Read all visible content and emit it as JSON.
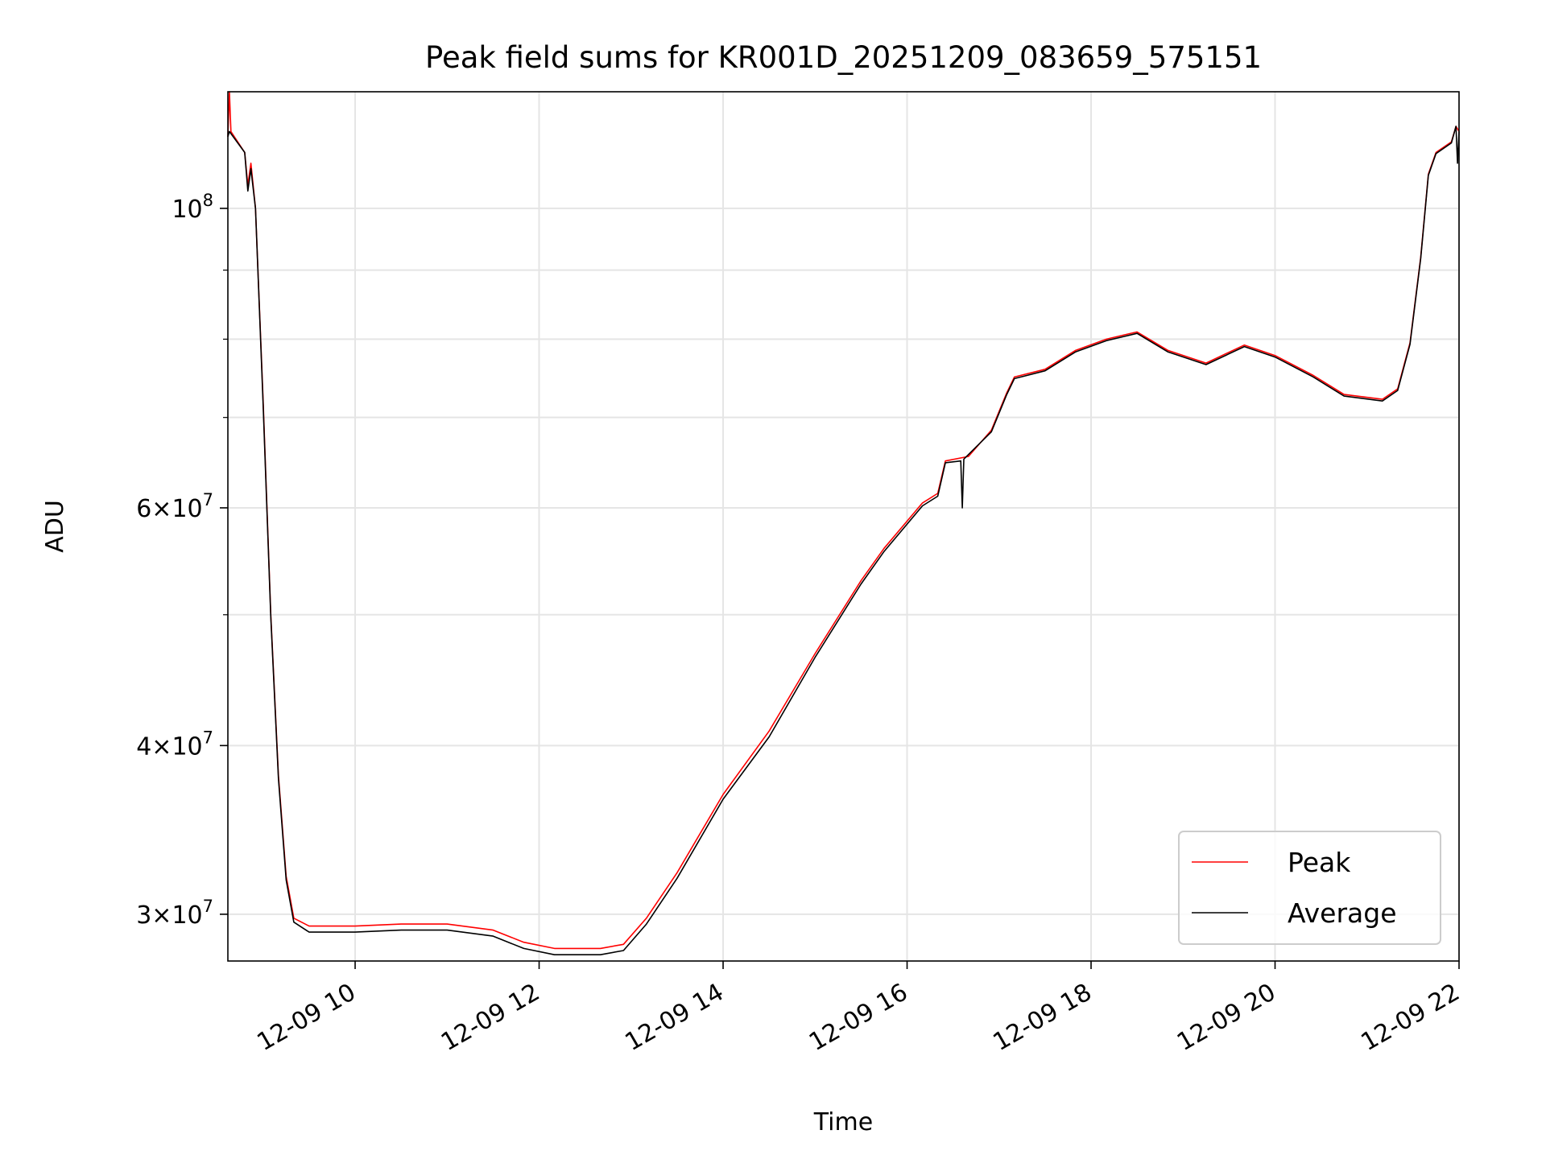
{
  "chart_data": {
    "type": "line",
    "title": "Peak field sums for KR001D_20251209_083659_575151",
    "xlabel": "Time",
    "ylabel": "ADU",
    "yscale": "log",
    "xlim": [
      "2025-12-09 08:37",
      "2025-12-09 22:00"
    ],
    "ylim": [
      27700000,
      122000000
    ],
    "grid": true,
    "legend": "lower right",
    "x_ticks": [
      {
        "value": "2025-12-09 10:00",
        "label": "12-09 10"
      },
      {
        "value": "2025-12-09 12:00",
        "label": "12-09 12"
      },
      {
        "value": "2025-12-09 14:00",
        "label": "12-09 14"
      },
      {
        "value": "2025-12-09 16:00",
        "label": "12-09 16"
      },
      {
        "value": "2025-12-09 18:00",
        "label": "12-09 18"
      },
      {
        "value": "2025-12-09 20:00",
        "label": "12-09 20"
      },
      {
        "value": "2025-12-09 22:00",
        "label": "12-09 22"
      }
    ],
    "y_ticks": [
      {
        "value": 30000000,
        "mantissa": "3",
        "exp": "7"
      },
      {
        "value": 40000000,
        "mantissa": "4",
        "exp": "7"
      },
      {
        "value": 60000000,
        "mantissa": "6",
        "exp": "7"
      },
      {
        "value": 100000000,
        "mantissa": "",
        "exp": "8"
      }
    ],
    "y_minor_ticks": [
      50000000,
      70000000,
      80000000,
      90000000
    ],
    "series": [
      {
        "name": "Peak",
        "color": "#ff0000",
        "points": [
          [
            "2025-12-09 08:37",
            113000000
          ],
          [
            "2025-12-09 08:38",
            122000000
          ],
          [
            "2025-12-09 08:39",
            114000000
          ],
          [
            "2025-12-09 08:48",
            110000000
          ],
          [
            "2025-12-09 08:50",
            104000000
          ],
          [
            "2025-12-09 08:52",
            108000000
          ],
          [
            "2025-12-09 08:55",
            100000000
          ],
          [
            "2025-12-09 09:00",
            72000000
          ],
          [
            "2025-12-09 09:05",
            50000000
          ],
          [
            "2025-12-09 09:10",
            38000000
          ],
          [
            "2025-12-09 09:15",
            32000000
          ],
          [
            "2025-12-09 09:20",
            29800000
          ],
          [
            "2025-12-09 09:30",
            29400000
          ],
          [
            "2025-12-09 10:00",
            29400000
          ],
          [
            "2025-12-09 10:30",
            29500000
          ],
          [
            "2025-12-09 11:00",
            29500000
          ],
          [
            "2025-12-09 11:30",
            29200000
          ],
          [
            "2025-12-09 11:50",
            28600000
          ],
          [
            "2025-12-09 12:10",
            28300000
          ],
          [
            "2025-12-09 12:40",
            28300000
          ],
          [
            "2025-12-09 12:55",
            28500000
          ],
          [
            "2025-12-09 13:10",
            29800000
          ],
          [
            "2025-12-09 13:30",
            32200000
          ],
          [
            "2025-12-09 14:00",
            36800000
          ],
          [
            "2025-12-09 14:30",
            41000000
          ],
          [
            "2025-12-09 15:00",
            46800000
          ],
          [
            "2025-12-09 15:30",
            53000000
          ],
          [
            "2025-12-09 15:45",
            56000000
          ],
          [
            "2025-12-09 16:10",
            60500000
          ],
          [
            "2025-12-09 16:20",
            61500000
          ],
          [
            "2025-12-09 16:25",
            65000000
          ],
          [
            "2025-12-09 16:40",
            65500000
          ],
          [
            "2025-12-09 16:55",
            68500000
          ],
          [
            "2025-12-09 17:05",
            73000000
          ],
          [
            "2025-12-09 17:10",
            75000000
          ],
          [
            "2025-12-09 17:30",
            76000000
          ],
          [
            "2025-12-09 17:50",
            78500000
          ],
          [
            "2025-12-09 18:10",
            80000000
          ],
          [
            "2025-12-09 18:30",
            81000000
          ],
          [
            "2025-12-09 18:50",
            78500000
          ],
          [
            "2025-12-09 19:15",
            76800000
          ],
          [
            "2025-12-09 19:40",
            79200000
          ],
          [
            "2025-12-09 20:00",
            77800000
          ],
          [
            "2025-12-09 20:25",
            75200000
          ],
          [
            "2025-12-09 20:45",
            72800000
          ],
          [
            "2025-12-09 21:10",
            72200000
          ],
          [
            "2025-12-09 21:20",
            73500000
          ],
          [
            "2025-12-09 21:28",
            79500000
          ],
          [
            "2025-12-09 21:35",
            92000000
          ],
          [
            "2025-12-09 21:40",
            106000000
          ],
          [
            "2025-12-09 21:45",
            110000000
          ],
          [
            "2025-12-09 21:55",
            112000000
          ],
          [
            "2025-12-09 21:58",
            115000000
          ],
          [
            "2025-12-09 22:00",
            114000000
          ]
        ]
      },
      {
        "name": "Average",
        "color": "#000000",
        "points": [
          [
            "2025-12-09 08:37",
            113000000
          ],
          [
            "2025-12-09 08:38",
            114000000
          ],
          [
            "2025-12-09 08:48",
            110000000
          ],
          [
            "2025-12-09 08:50",
            103000000
          ],
          [
            "2025-12-09 08:52",
            107000000
          ],
          [
            "2025-12-09 08:55",
            100000000
          ],
          [
            "2025-12-09 09:00",
            71500000
          ],
          [
            "2025-12-09 09:05",
            49800000
          ],
          [
            "2025-12-09 09:10",
            37800000
          ],
          [
            "2025-12-09 09:15",
            31800000
          ],
          [
            "2025-12-09 09:20",
            29600000
          ],
          [
            "2025-12-09 09:30",
            29100000
          ],
          [
            "2025-12-09 10:00",
            29100000
          ],
          [
            "2025-12-09 10:30",
            29200000
          ],
          [
            "2025-12-09 11:00",
            29200000
          ],
          [
            "2025-12-09 11:30",
            28900000
          ],
          [
            "2025-12-09 11:50",
            28300000
          ],
          [
            "2025-12-09 12:10",
            28000000
          ],
          [
            "2025-12-09 12:40",
            28000000
          ],
          [
            "2025-12-09 12:55",
            28200000
          ],
          [
            "2025-12-09 13:10",
            29500000
          ],
          [
            "2025-12-09 13:30",
            31900000
          ],
          [
            "2025-12-09 14:00",
            36500000
          ],
          [
            "2025-12-09 14:30",
            40600000
          ],
          [
            "2025-12-09 15:00",
            46500000
          ],
          [
            "2025-12-09 15:30",
            52700000
          ],
          [
            "2025-12-09 15:45",
            55700000
          ],
          [
            "2025-12-09 16:10",
            60200000
          ],
          [
            "2025-12-09 16:20",
            61200000
          ],
          [
            "2025-12-09 16:25",
            64800000
          ],
          [
            "2025-12-09 16:35",
            65000000
          ],
          [
            "2025-12-09 16:36",
            60000000
          ],
          [
            "2025-12-09 16:37",
            65200000
          ],
          [
            "2025-12-09 16:55",
            68300000
          ],
          [
            "2025-12-09 17:05",
            72800000
          ],
          [
            "2025-12-09 17:10",
            74800000
          ],
          [
            "2025-12-09 17:30",
            75800000
          ],
          [
            "2025-12-09 17:50",
            78300000
          ],
          [
            "2025-12-09 18:10",
            79800000
          ],
          [
            "2025-12-09 18:30",
            80800000
          ],
          [
            "2025-12-09 18:50",
            78300000
          ],
          [
            "2025-12-09 19:15",
            76600000
          ],
          [
            "2025-12-09 19:40",
            79000000
          ],
          [
            "2025-12-09 20:00",
            77600000
          ],
          [
            "2025-12-09 20:25",
            75000000
          ],
          [
            "2025-12-09 20:45",
            72600000
          ],
          [
            "2025-12-09 21:10",
            72000000
          ],
          [
            "2025-12-09 21:20",
            73300000
          ],
          [
            "2025-12-09 21:28",
            79300000
          ],
          [
            "2025-12-09 21:35",
            91800000
          ],
          [
            "2025-12-09 21:40",
            105800000
          ],
          [
            "2025-12-09 21:45",
            109800000
          ],
          [
            "2025-12-09 21:55",
            111800000
          ],
          [
            "2025-12-09 21:58",
            115000000
          ],
          [
            "2025-12-09 21:59",
            108000000
          ],
          [
            "2025-12-09 22:00",
            114000000
          ]
        ]
      }
    ]
  }
}
